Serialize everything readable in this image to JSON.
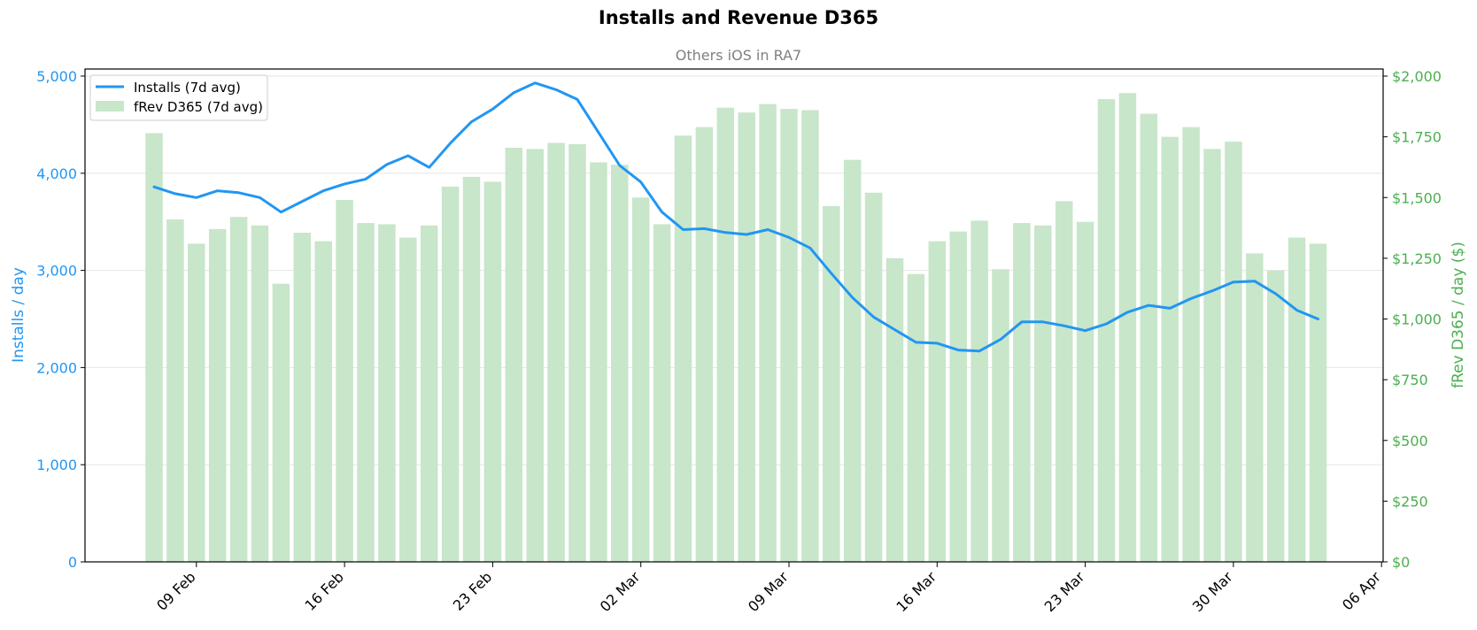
{
  "colors": {
    "installs": "#2196f3",
    "revenue_bar": "#c8e6c9",
    "revenue_axis": "#4caf50",
    "subtitle": "#808080",
    "grid": "#e6e6e6"
  },
  "chart_data": {
    "type": "bar",
    "title": "Installs and Revenue D365",
    "subtitle": "Others iOS in RA7",
    "ylabel_left": "Installs / day",
    "ylabel_right": "fRev D365 / day ($)",
    "ylim_left": [
      0,
      5000
    ],
    "ylim_right": [
      0,
      2000
    ],
    "yticks_left": [
      "0",
      "1,000",
      "2,000",
      "3,000",
      "4,000",
      "5,000"
    ],
    "yticks_right": [
      "$0",
      "$250",
      "$500",
      "$750",
      "$1,000",
      "$1,250",
      "$1,500",
      "$1,750",
      "$2,000"
    ],
    "xticks": [
      "09 Feb",
      "16 Feb",
      "23 Feb",
      "02 Mar",
      "09 Mar",
      "16 Mar",
      "23 Mar",
      "30 Mar",
      "06 Apr"
    ],
    "x_start": "07 Feb",
    "grid": true,
    "legend": "top-left",
    "legend_entries": [
      "Installs (7d avg)",
      "fRev D365 (7d avg)"
    ],
    "series": [
      {
        "name": "Installs (7d avg)",
        "kind": "line",
        "axis": "left",
        "values": [
          3860,
          3790,
          3750,
          3820,
          3800,
          3750,
          3600,
          3710,
          3820,
          3890,
          3940,
          4090,
          4180,
          4060,
          4310,
          4530,
          4660,
          4830,
          4930,
          4860,
          4760,
          4420,
          4080,
          3910,
          3600,
          3420,
          3430,
          3390,
          3370,
          3420,
          3340,
          3230,
          2970,
          2720,
          2520,
          2390,
          2260,
          2250,
          2180,
          2170,
          2290,
          2470,
          2470,
          2430,
          2380,
          2450,
          2570,
          2640,
          2610,
          2710,
          2790,
          2880,
          2890,
          2760,
          2590,
          2500
        ]
      },
      {
        "name": "fRev D365 (7d avg)",
        "kind": "bar",
        "axis": "right",
        "values": [
          1765,
          1410,
          1310,
          1370,
          1420,
          1385,
          1145,
          1355,
          1320,
          1490,
          1395,
          1390,
          1335,
          1385,
          1545,
          1585,
          1565,
          1705,
          1700,
          1725,
          1720,
          1645,
          1635,
          1500,
          1390,
          1755,
          1790,
          1870,
          1850,
          1885,
          1865,
          1860,
          1465,
          1655,
          1520,
          1250,
          1185,
          1320,
          1360,
          1405,
          1205,
          1395,
          1385,
          1485,
          1400,
          1905,
          1930,
          1845,
          1750,
          1790,
          1700,
          1730,
          1270,
          1200,
          1335,
          1310
        ]
      }
    ]
  }
}
